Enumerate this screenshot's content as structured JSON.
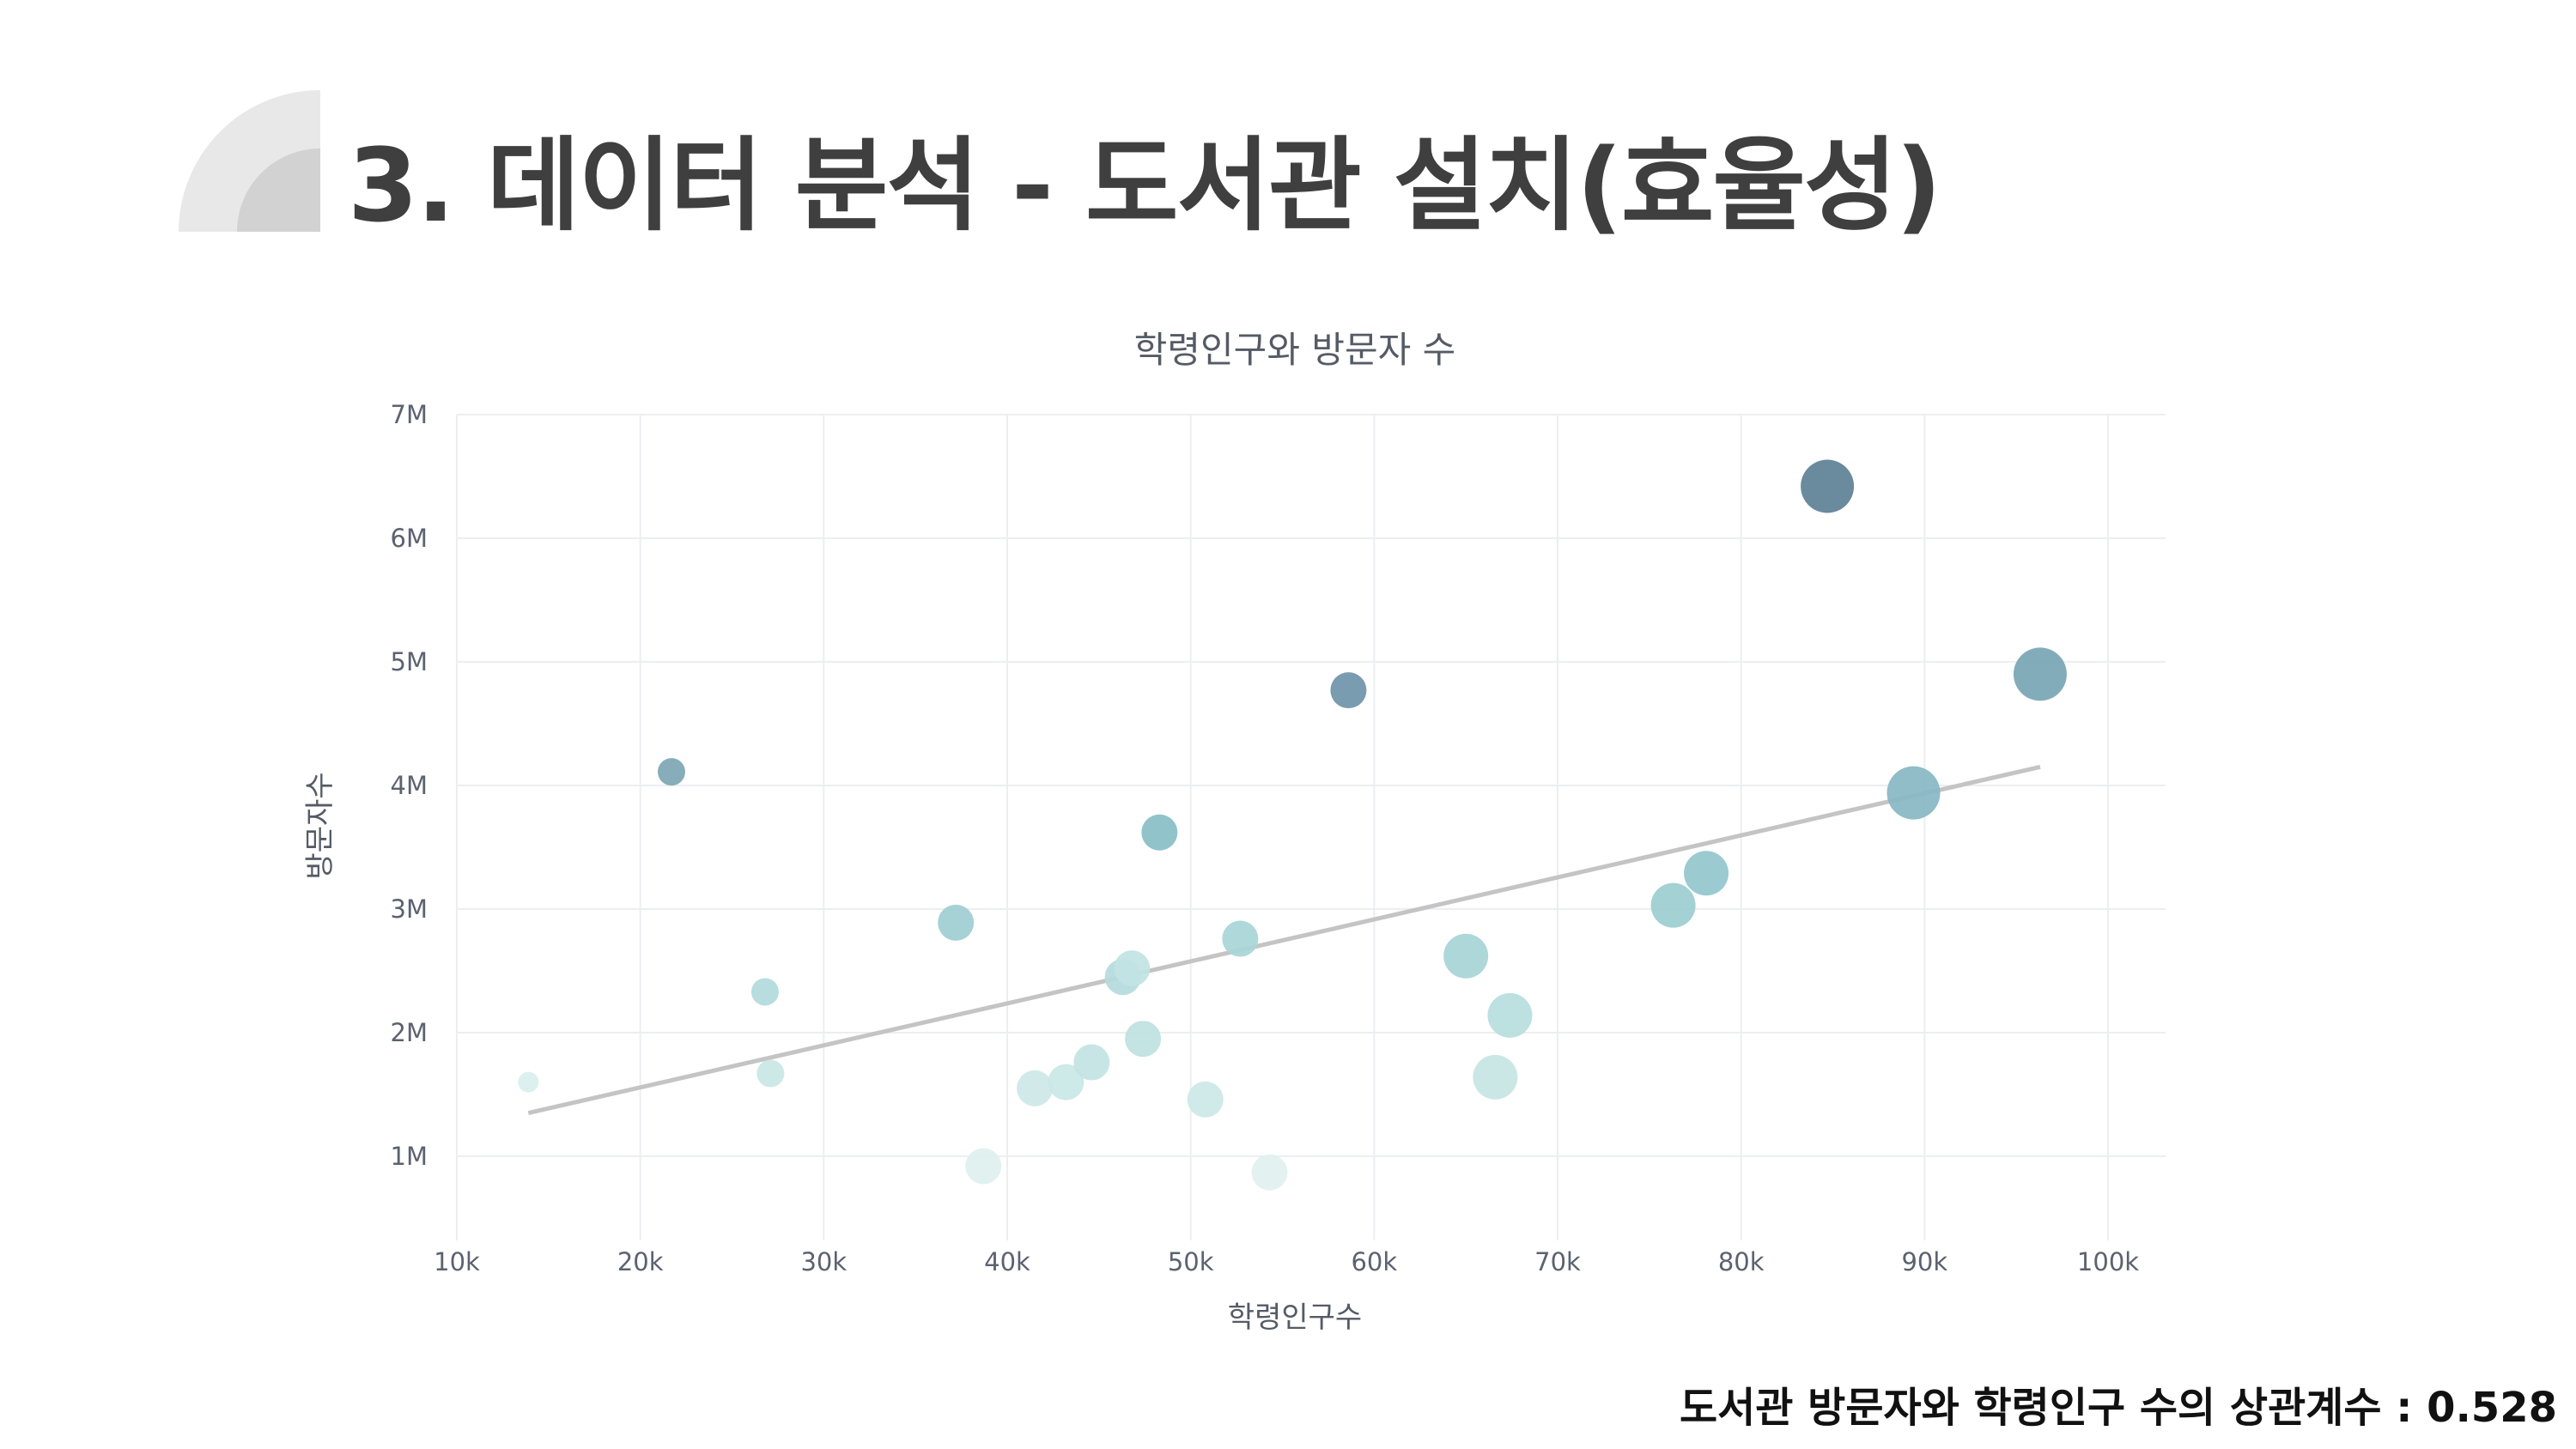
{
  "slide": {
    "title": "3. 데이터 분석 - 도서관 설치(효율성)",
    "footnote": "도서관 방문자와 학령인구 수의 상관계수 : 0.528"
  },
  "colors": {
    "deco_light": "#e8e8e8",
    "deco_dark": "#d2d2d2",
    "trendline": "#c4c4c4",
    "bubble_low": "#d3ebe9",
    "bubble_high": "#5d7f93"
  },
  "chart_data": {
    "type": "scatter",
    "title": "학령인구와 방문자 수",
    "xlabel": "학령인구수",
    "ylabel": "방문자수",
    "xlim": [
      10000,
      103000
    ],
    "ylim": [
      350000,
      7000000
    ],
    "x_ticks": [
      10000,
      20000,
      30000,
      40000,
      50000,
      60000,
      70000,
      80000,
      90000,
      100000
    ],
    "x_tick_labels": [
      "10k",
      "20k",
      "30k",
      "40k",
      "50k",
      "60k",
      "70k",
      "80k",
      "90k",
      "100k"
    ],
    "y_ticks": [
      1000000,
      2000000,
      3000000,
      4000000,
      5000000,
      6000000,
      7000000
    ],
    "y_tick_labels": [
      "1M",
      "2M",
      "3M",
      "4M",
      "5M",
      "6M",
      "7M"
    ],
    "grid": true,
    "legend": "none",
    "points": [
      {
        "x": 13900,
        "y": 1600000,
        "size": 1,
        "color": "#d9efee"
      },
      {
        "x": 21700,
        "y": 4110000,
        "size": 2,
        "color": "#7ea7b6"
      },
      {
        "x": 26800,
        "y": 2330000,
        "size": 2,
        "color": "#b3dadb"
      },
      {
        "x": 27100,
        "y": 1670000,
        "size": 2,
        "color": "#c8e6e5"
      },
      {
        "x": 37200,
        "y": 2890000,
        "size": 3,
        "color": "#9fcfd3"
      },
      {
        "x": 38700,
        "y": 920000,
        "size": 3,
        "color": "#dff0ef"
      },
      {
        "x": 41500,
        "y": 1550000,
        "size": 3,
        "color": "#cde8e7"
      },
      {
        "x": 43200,
        "y": 1600000,
        "size": 3,
        "color": "#c9e7e6"
      },
      {
        "x": 44600,
        "y": 1760000,
        "size": 3,
        "color": "#c3e3e3"
      },
      {
        "x": 46300,
        "y": 2450000,
        "size": 3,
        "color": "#b5dcdd"
      },
      {
        "x": 46800,
        "y": 2520000,
        "size": 3,
        "color": "#c2e3e3"
      },
      {
        "x": 47400,
        "y": 1950000,
        "size": 3,
        "color": "#bfe1e1"
      },
      {
        "x": 48300,
        "y": 3620000,
        "size": 3,
        "color": "#88bfc6"
      },
      {
        "x": 50800,
        "y": 1460000,
        "size": 3,
        "color": "#cce8e7"
      },
      {
        "x": 52700,
        "y": 2760000,
        "size": 3,
        "color": "#a9d5d8"
      },
      {
        "x": 54300,
        "y": 870000,
        "size": 3,
        "color": "#e1f1f0"
      },
      {
        "x": 58600,
        "y": 4770000,
        "size": 3,
        "color": "#6f95aa"
      },
      {
        "x": 65000,
        "y": 2620000,
        "size": 4,
        "color": "#a8d4d7"
      },
      {
        "x": 66600,
        "y": 1640000,
        "size": 4,
        "color": "#c6e5e4"
      },
      {
        "x": 67400,
        "y": 2140000,
        "size": 4,
        "color": "#b8dedf"
      },
      {
        "x": 76300,
        "y": 3030000,
        "size": 4,
        "color": "#9ccdd1"
      },
      {
        "x": 78100,
        "y": 3290000,
        "size": 4,
        "color": "#93c7cd"
      },
      {
        "x": 84700,
        "y": 6420000,
        "size": 5,
        "color": "#5f8196"
      },
      {
        "x": 89400,
        "y": 3940000,
        "size": 5,
        "color": "#88b8c3"
      },
      {
        "x": 96300,
        "y": 4900000,
        "size": 5,
        "color": "#7aa6b6"
      }
    ],
    "trendline": {
      "x": [
        13900,
        96300
      ],
      "y": [
        1350000,
        4150000
      ]
    }
  }
}
